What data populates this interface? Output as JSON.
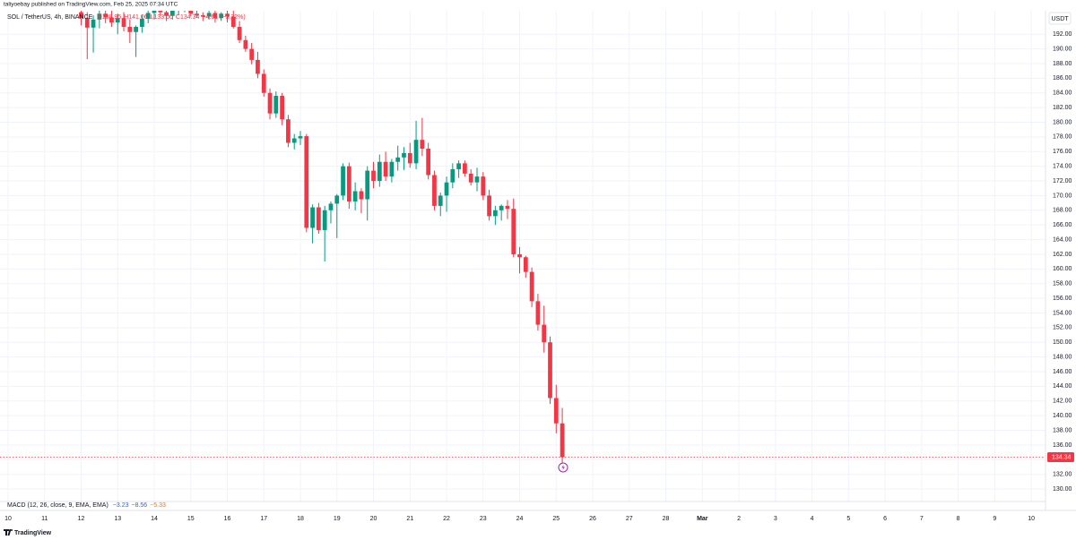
{
  "header": {
    "publisher": "taliyoebay published on TradingView.com, Feb 25, 2025 07:34 UTC",
    "brand": "TradingView"
  },
  "chart_data": {
    "type": "candlestick",
    "symbol": "SOL / TetherUS, 4h, BINANCE",
    "legend_values": [
      "O138.95",
      "H141.06",
      "L133.00",
      "C134.34",
      "−4.61 (−3.32%)"
    ],
    "currency": "USDT",
    "indicator": {
      "name": "MACD (12, 26, close, 9, EMA, EMA)",
      "values": [
        "−3.23",
        "−8.56",
        "−5.33"
      ],
      "colors": [
        "#2962ff",
        "#2962ff",
        "#ff6d00"
      ]
    },
    "up_color": "#089981",
    "down_color": "#f23645",
    "last_price": 134.34,
    "grid": true,
    "xlim": [
      9.78,
      38.39
    ],
    "ylim": [
      128.3,
      195.2
    ],
    "xticks": [
      10,
      11,
      12,
      13,
      14,
      15,
      16,
      17,
      18,
      19,
      20,
      21,
      22,
      23,
      24,
      25,
      26,
      27,
      28,
      {
        "value": 29,
        "label": "Mar"
      },
      {
        "value": 30,
        "label": "2"
      },
      {
        "value": 31,
        "label": "3"
      },
      {
        "value": 32,
        "label": "4"
      },
      {
        "value": 33,
        "label": "5"
      },
      {
        "value": 34,
        "label": "6"
      },
      {
        "value": 35,
        "label": "7"
      },
      {
        "value": 36,
        "label": "8"
      },
      {
        "value": 37,
        "label": "9"
      },
      {
        "value": 38,
        "label": "10"
      }
    ],
    "yticks": [
      {
        "value": 130,
        "label": "130.00"
      },
      {
        "value": 132,
        "label": "132.00"
      },
      {
        "value": 134,
        "label": "134.00"
      },
      {
        "value": 136,
        "label": "136.00"
      },
      {
        "value": 138,
        "label": "138.00"
      },
      {
        "value": 140,
        "label": "140.00"
      },
      {
        "value": 142,
        "label": "142.00"
      },
      {
        "value": 144,
        "label": "144.00"
      },
      {
        "value": 146,
        "label": "146.00"
      },
      {
        "value": 148,
        "label": "148.00"
      },
      {
        "value": 150,
        "label": "150.00"
      },
      {
        "value": 152,
        "label": "152.00"
      },
      {
        "value": 154,
        "label": "154.00"
      },
      {
        "value": 156,
        "label": "156.00"
      },
      {
        "value": 158,
        "label": "158.00"
      },
      {
        "value": 160,
        "label": "160.00"
      },
      {
        "value": 162,
        "label": "162.00"
      },
      {
        "value": 164,
        "label": "164.00"
      },
      {
        "value": 166,
        "label": "166.00"
      },
      {
        "value": 168,
        "label": "168.00"
      },
      {
        "value": 170,
        "label": "170.00"
      },
      {
        "value": 172,
        "label": "172.00"
      },
      {
        "value": 174,
        "label": "174.00"
      },
      {
        "value": 176,
        "label": "176.00"
      },
      {
        "value": 178,
        "label": "178.00"
      },
      {
        "value": 180,
        "label": "180.00"
      },
      {
        "value": 182,
        "label": "182.00"
      },
      {
        "value": 184,
        "label": "184.00"
      },
      {
        "value": 186,
        "label": "186.00"
      },
      {
        "value": 188,
        "label": "188.00"
      },
      {
        "value": 190,
        "label": "190.00"
      },
      {
        "value": 192,
        "label": "192.00"
      }
    ],
    "x": [
      12,
      12.1667,
      12.3333,
      12.5,
      12.6667,
      12.8333,
      13,
      13.1667,
      13.3333,
      13.5,
      13.6667,
      13.8333,
      14,
      14.1667,
      14.3333,
      14.5,
      14.6667,
      14.8333,
      15,
      15.1667,
      15.3333,
      15.5,
      15.6667,
      15.8333,
      16,
      16.1667,
      16.3333,
      16.5,
      16.6667,
      16.8333,
      17,
      17.1667,
      17.3333,
      17.5,
      17.6667,
      17.8333,
      18,
      18.1667,
      18.3333,
      18.5,
      18.6667,
      18.8333,
      19,
      19.1667,
      19.3333,
      19.5,
      19.6667,
      19.8333,
      20,
      20.1667,
      20.3333,
      20.5,
      20.6667,
      20.8333,
      21,
      21.1667,
      21.3333,
      21.5,
      21.6667,
      21.8333,
      22,
      22.1667,
      22.3333,
      22.5,
      22.6667,
      22.8333,
      23,
      23.1667,
      23.3333,
      23.5,
      23.6667,
      23.8333,
      24,
      24.1667,
      24.3333,
      24.5,
      24.6667,
      24.8333,
      25,
      25.1667
    ],
    "open": [
      195.0,
      194.2,
      192.9,
      194.0,
      194.8,
      194.3,
      193.6,
      194.2,
      193.0,
      192.3,
      193.0,
      194.1,
      194.9,
      195.4,
      195.0,
      194.5,
      195.2,
      195.6,
      195.8,
      194.8,
      194.6,
      194.4,
      194.9,
      194.2,
      194.8,
      194.4,
      193.0,
      191.2,
      190.0,
      188.5,
      186.6,
      184.0,
      181.2,
      183.6,
      180.4,
      177.2,
      177.8,
      178.1,
      165.6,
      168.4,
      165.3,
      168.0,
      168.9,
      170.0,
      174.0,
      169.2,
      170.6,
      169.5,
      173.4,
      172.0,
      174.6,
      172.6,
      174.6,
      175.2,
      175.8,
      174.4,
      177.6,
      176.4,
      172.8,
      168.6,
      170.0,
      171.8,
      173.6,
      174.4,
      173.0,
      171.8,
      172.6,
      170.0,
      167.2,
      168.0,
      168.6,
      168.2,
      162.0,
      161.6,
      159.6,
      155.6,
      152.4,
      150.0,
      142.4,
      138.95
    ],
    "high": [
      195.8,
      195.0,
      194.6,
      195.5,
      195.6,
      195.2,
      194.8,
      195.0,
      194.0,
      193.2,
      194.6,
      195.4,
      196.0,
      196.2,
      195.8,
      195.6,
      196.0,
      196.4,
      196.0,
      195.2,
      195.0,
      195.2,
      195.2,
      195.0,
      195.4,
      195.2,
      193.8,
      191.8,
      190.8,
      189.6,
      187.2,
      184.6,
      184.2,
      184.0,
      181.0,
      178.4,
      178.8,
      178.4,
      168.8,
      169.0,
      168.6,
      169.2,
      170.2,
      174.4,
      174.5,
      171.8,
      171.0,
      174.0,
      174.6,
      175.6,
      176.0,
      175.0,
      176.8,
      176.6,
      177.2,
      180.2,
      180.6,
      177.2,
      173.4,
      170.4,
      172.6,
      174.4,
      174.8,
      174.8,
      173.6,
      173.8,
      173.2,
      170.8,
      168.6,
      168.8,
      169.4,
      169.6,
      163.0,
      161.8,
      160.2,
      156.6,
      155.0,
      150.8,
      144.2,
      141.06
    ],
    "low": [
      193.2,
      188.6,
      189.5,
      192.8,
      193.5,
      193.0,
      192.0,
      192.4,
      190.8,
      188.9,
      192.2,
      193.5,
      194.0,
      194.6,
      193.8,
      194.0,
      194.6,
      195.0,
      194.4,
      194.2,
      193.8,
      194.0,
      193.6,
      193.8,
      193.6,
      192.8,
      190.8,
      189.6,
      187.9,
      186.0,
      183.5,
      180.4,
      180.6,
      179.6,
      176.6,
      176.3,
      176.9,
      165.0,
      163.5,
      164.8,
      161.0,
      166.2,
      164.2,
      169.4,
      168.2,
      168.0,
      167.6,
      166.6,
      171.0,
      171.2,
      172.0,
      171.8,
      173.4,
      173.5,
      173.8,
      173.6,
      175.4,
      172.2,
      168.0,
      167.2,
      167.8,
      171.0,
      172.4,
      172.6,
      171.4,
      170.6,
      169.4,
      166.6,
      166.0,
      166.6,
      166.8,
      161.6,
      159.4,
      158.8,
      154.8,
      151.6,
      148.6,
      141.6,
      137.6,
      133.0
    ],
    "close": [
      194.2,
      192.9,
      194.0,
      194.8,
      194.3,
      193.6,
      194.2,
      193.0,
      192.3,
      193.0,
      194.1,
      194.9,
      195.4,
      195.0,
      194.5,
      195.2,
      195.6,
      195.8,
      194.8,
      194.6,
      194.4,
      194.9,
      194.2,
      194.8,
      194.4,
      193.0,
      191.2,
      190.0,
      188.5,
      186.6,
      184.0,
      181.2,
      183.6,
      180.4,
      177.2,
      177.8,
      178.1,
      165.6,
      168.4,
      165.3,
      168.0,
      168.9,
      170.0,
      174.0,
      169.2,
      170.6,
      169.5,
      173.4,
      172.0,
      174.6,
      172.6,
      174.6,
      175.2,
      175.8,
      174.4,
      177.6,
      176.4,
      172.8,
      168.6,
      170.0,
      171.8,
      173.6,
      174.4,
      173.0,
      171.8,
      172.6,
      170.0,
      167.2,
      168.0,
      168.6,
      168.2,
      162.0,
      161.6,
      159.6,
      155.6,
      152.4,
      150.0,
      142.4,
      138.95,
      134.34
    ]
  }
}
